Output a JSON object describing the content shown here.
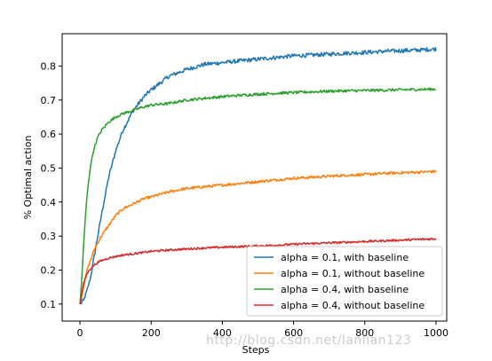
{
  "chart_data": {
    "type": "line",
    "title": "",
    "xlabel": "Steps",
    "ylabel": "% Optimal action",
    "xlim": [
      -50,
      1030
    ],
    "ylim": [
      0.05,
      0.895
    ],
    "xticks": [
      0,
      200,
      400,
      600,
      800,
      1000
    ],
    "yticks": [
      0.1,
      0.2,
      0.3,
      0.4,
      0.5,
      0.6,
      0.7,
      0.8
    ],
    "grid": false,
    "legend_position": "bottom-right",
    "series": [
      {
        "name": "alpha = 0.1, with baseline",
        "color": "#1f77b4",
        "x": [
          0,
          10,
          20,
          30,
          40,
          50,
          60,
          80,
          100,
          120,
          150,
          180,
          200,
          250,
          300,
          350,
          400,
          450,
          500,
          550,
          600,
          650,
          700,
          750,
          800,
          850,
          900,
          950,
          1000
        ],
        "y": [
          0.1,
          0.11,
          0.14,
          0.18,
          0.24,
          0.3,
          0.36,
          0.47,
          0.55,
          0.61,
          0.67,
          0.71,
          0.73,
          0.77,
          0.79,
          0.805,
          0.81,
          0.815,
          0.82,
          0.825,
          0.83,
          0.832,
          0.835,
          0.838,
          0.84,
          0.843,
          0.845,
          0.847,
          0.85
        ]
      },
      {
        "name": "alpha = 0.1, without baseline",
        "color": "#ff7f0e",
        "x": [
          0,
          10,
          20,
          30,
          40,
          50,
          60,
          80,
          100,
          120,
          150,
          180,
          200,
          250,
          300,
          350,
          400,
          450,
          500,
          550,
          600,
          650,
          700,
          750,
          800,
          850,
          900,
          950,
          1000
        ],
        "y": [
          0.1,
          0.15,
          0.2,
          0.23,
          0.26,
          0.28,
          0.3,
          0.33,
          0.36,
          0.38,
          0.395,
          0.41,
          0.415,
          0.43,
          0.44,
          0.445,
          0.45,
          0.455,
          0.46,
          0.465,
          0.47,
          0.473,
          0.476,
          0.479,
          0.481,
          0.484,
          0.486,
          0.488,
          0.49
        ]
      },
      {
        "name": "alpha = 0.4, with baseline",
        "color": "#2ca02c",
        "x": [
          0,
          5,
          10,
          15,
          20,
          30,
          40,
          50,
          60,
          80,
          100,
          120,
          150,
          180,
          200,
          250,
          300,
          350,
          400,
          450,
          500,
          550,
          600,
          650,
          700,
          750,
          800,
          850,
          900,
          950,
          1000
        ],
        "y": [
          0.1,
          0.17,
          0.27,
          0.35,
          0.42,
          0.51,
          0.56,
          0.59,
          0.61,
          0.635,
          0.65,
          0.66,
          0.67,
          0.68,
          0.685,
          0.69,
          0.7,
          0.705,
          0.71,
          0.714,
          0.717,
          0.72,
          0.722,
          0.724,
          0.726,
          0.727,
          0.728,
          0.729,
          0.73,
          0.731,
          0.732
        ]
      },
      {
        "name": "alpha = 0.4, without baseline",
        "color": "#d62728",
        "x": [
          0,
          10,
          20,
          30,
          40,
          50,
          60,
          80,
          100,
          120,
          150,
          180,
          200,
          250,
          300,
          350,
          400,
          450,
          500,
          550,
          600,
          650,
          700,
          750,
          800,
          850,
          900,
          950,
          1000
        ],
        "y": [
          0.1,
          0.16,
          0.19,
          0.205,
          0.215,
          0.222,
          0.228,
          0.235,
          0.24,
          0.244,
          0.248,
          0.252,
          0.255,
          0.259,
          0.262,
          0.265,
          0.267,
          0.269,
          0.271,
          0.273,
          0.276,
          0.278,
          0.28,
          0.282,
          0.284,
          0.286,
          0.288,
          0.29,
          0.292
        ]
      }
    ]
  },
  "watermark_text": "http://blog.csdn.net/lanlian123"
}
